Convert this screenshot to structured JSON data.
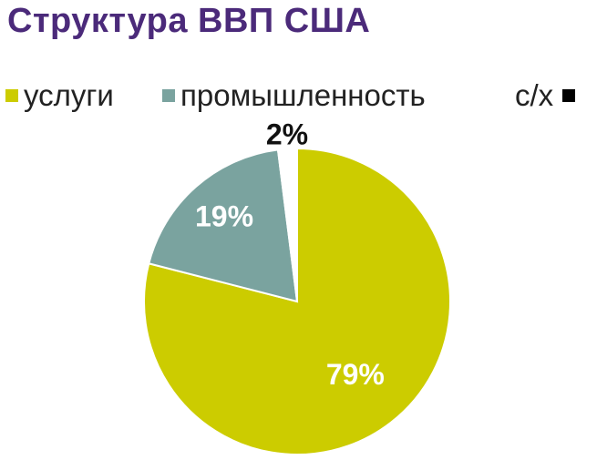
{
  "colors": {
    "title": "#4b2a7a",
    "services": "#cccc00",
    "industry": "#7aa39f",
    "agriculture": "#000000"
  },
  "chart_data": {
    "type": "pie",
    "title": "Структура ВВП США",
    "legend_position": "top",
    "series": [
      {
        "name": "услуги",
        "value": 79,
        "label": "79%",
        "color": "#cccc00"
      },
      {
        "name": "промышленность",
        "value": 19,
        "label": "19%",
        "color": "#7aa39f"
      },
      {
        "name": "с/х",
        "value": 2,
        "label": "2%",
        "color": "#000000"
      }
    ]
  }
}
